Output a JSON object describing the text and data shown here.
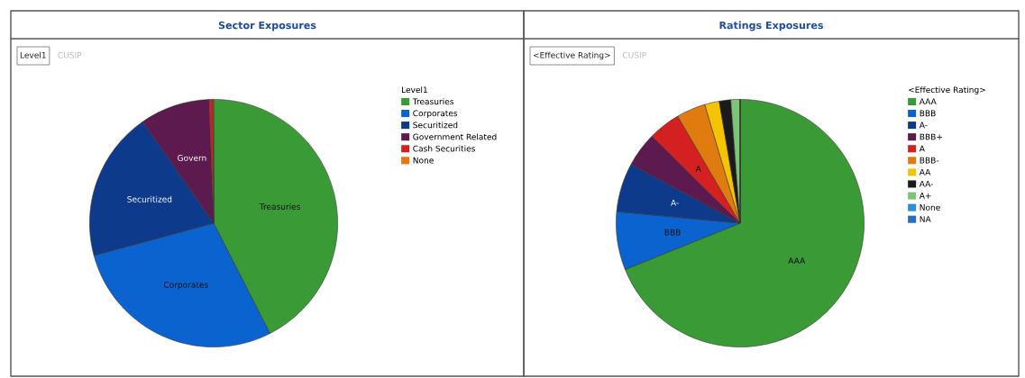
{
  "chart_data": [
    {
      "type": "pie",
      "title": "Sector Exposures",
      "legend_title": "Level1",
      "legend": "right",
      "categories": [
        "Treasuries",
        "Corporates",
        "Securitized",
        "Government Related",
        "Cash Securities",
        "None"
      ],
      "values": [
        42.5,
        28.3,
        19.5,
        9.1,
        0.5,
        0.1
      ],
      "colors": [
        "#3a9a35",
        "#0b63d0",
        "#0d3a8a",
        "#5c1a4f",
        "#d42020",
        "#e8750f"
      ],
      "annotations": [
        "Level1",
        "CUSIP",
        {
          "text": "Treasuries",
          "x": "Treasuries"
        },
        {
          "text": "Corporates",
          "x": "Corporates"
        },
        {
          "text": "Securitized",
          "x": "Securitized"
        },
        {
          "text": "Govern",
          "x": "Government Related"
        }
      ]
    },
    {
      "type": "pie",
      "title": "Ratings Exposures",
      "legend_title": "<Effective Rating>",
      "legend": "right",
      "categories": [
        "AAA",
        "BBB",
        "A-",
        "BBB+",
        "A",
        "BBB-",
        "AA",
        "AA-",
        "A+",
        "None",
        "NA"
      ],
      "values": [
        68.9,
        7.6,
        6.4,
        4.5,
        4.2,
        3.8,
        1.9,
        1.5,
        1.2,
        0,
        0
      ],
      "colors": [
        "#3a9a35",
        "#0b63d0",
        "#0d3a8a",
        "#5c1a4f",
        "#d42020",
        "#e07b10",
        "#f5c400",
        "#1a1a1a",
        "#7cc576",
        "#2b8fe0",
        "#2a6fbf"
      ],
      "annotations": [
        "<Effective Rating>",
        "CUSIP",
        {
          "text": "AAA",
          "x": "AAA"
        },
        {
          "text": "BBB",
          "x": "BBB"
        },
        {
          "text": "A-",
          "x": "A-"
        },
        {
          "text": "A",
          "x": "A"
        }
      ]
    }
  ]
}
